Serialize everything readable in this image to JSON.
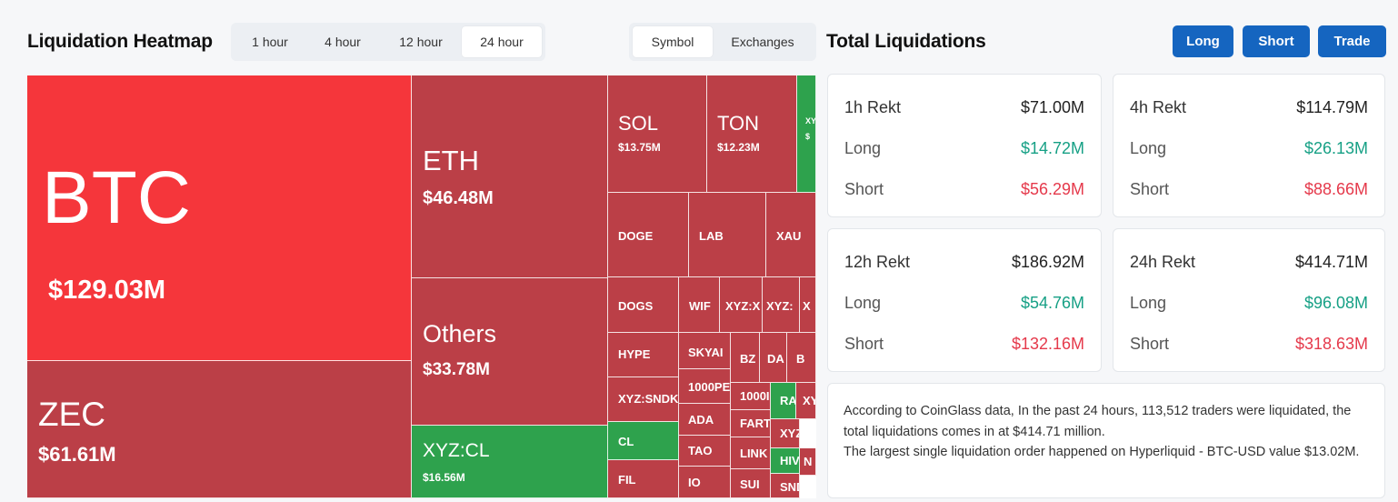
{
  "heatmap": {
    "title": "Liquidation Heatmap",
    "time_tabs": [
      "1 hour",
      "4 hour",
      "12 hour",
      "24 hour"
    ],
    "active_time_tab": "24 hour",
    "group_tabs": [
      "Symbol",
      "Exchanges"
    ],
    "active_group_tab": "Symbol",
    "colors": {
      "bright_red": "#f5363b",
      "red": "#bb3f47",
      "green": "#2ea24d"
    },
    "tiles": [
      {
        "symbol": "BTC",
        "value": "$129.03M"
      },
      {
        "symbol": "ZEC",
        "value": "$61.61M"
      },
      {
        "symbol": "ETH",
        "value": "$46.48M"
      },
      {
        "symbol": "Others",
        "value": "$33.78M"
      },
      {
        "symbol": "XYZ:CL",
        "value": "$16.56M"
      },
      {
        "symbol": "SOL",
        "value": "$13.75M"
      },
      {
        "symbol": "TON",
        "value": "$12.23M"
      },
      {
        "symbol": "XY",
        "value": "$"
      },
      {
        "symbol": "DOGE",
        "value": ""
      },
      {
        "symbol": "LAB",
        "value": ""
      },
      {
        "symbol": "XAU",
        "value": ""
      },
      {
        "symbol": "DOGS",
        "value": ""
      },
      {
        "symbol": "WIF",
        "value": ""
      },
      {
        "symbol": "XYZ:X",
        "value": ""
      },
      {
        "symbol": "XYZ:",
        "value": ""
      },
      {
        "symbol": "X",
        "value": ""
      },
      {
        "symbol": "HYPE",
        "value": ""
      },
      {
        "symbol": "SKYAI",
        "value": ""
      },
      {
        "symbol": "BZ",
        "value": ""
      },
      {
        "symbol": "DA",
        "value": ""
      },
      {
        "symbol": "B",
        "value": ""
      },
      {
        "symbol": "XYZ:SNDK",
        "value": ""
      },
      {
        "symbol": "1000PE",
        "value": ""
      },
      {
        "symbol": "1000I",
        "value": ""
      },
      {
        "symbol": "RA",
        "value": ""
      },
      {
        "symbol": "XY",
        "value": ""
      },
      {
        "symbol": "ADA",
        "value": ""
      },
      {
        "symbol": "CL",
        "value": ""
      },
      {
        "symbol": "FART",
        "value": ""
      },
      {
        "symbol": "XYZ",
        "value": ""
      },
      {
        "symbol": "TAO",
        "value": ""
      },
      {
        "symbol": "LINK",
        "value": ""
      },
      {
        "symbol": "HIV",
        "value": ""
      },
      {
        "symbol": "N",
        "value": ""
      },
      {
        "symbol": "FIL",
        "value": ""
      },
      {
        "symbol": "IO",
        "value": ""
      },
      {
        "symbol": "SUI",
        "value": ""
      },
      {
        "symbol": "SND",
        "value": ""
      }
    ]
  },
  "total": {
    "title": "Total Liquidations",
    "buttons": [
      "Long",
      "Short",
      "Trade"
    ],
    "cards": [
      {
        "period": "1h Rekt",
        "total": "$71.00M",
        "long_label": "Long",
        "long": "$14.72M",
        "short_label": "Short",
        "short": "$56.29M"
      },
      {
        "period": "4h Rekt",
        "total": "$114.79M",
        "long_label": "Long",
        "long": "$26.13M",
        "short_label": "Short",
        "short": "$88.66M"
      },
      {
        "period": "12h Rekt",
        "total": "$186.92M",
        "long_label": "Long",
        "long": "$54.76M",
        "short_label": "Short",
        "short": "$132.16M"
      },
      {
        "period": "24h Rekt",
        "total": "$414.71M",
        "long_label": "Long",
        "long": "$96.08M",
        "short_label": "Short",
        "short": "$318.63M"
      }
    ],
    "summary": [
      "According to CoinGlass data, In the past 24 hours, 113,512 traders were liquidated, the total liquidations comes in at $414.71 million.",
      "The largest single liquidation order happened on Hyperliquid - BTC-USD value $13.02M."
    ]
  }
}
